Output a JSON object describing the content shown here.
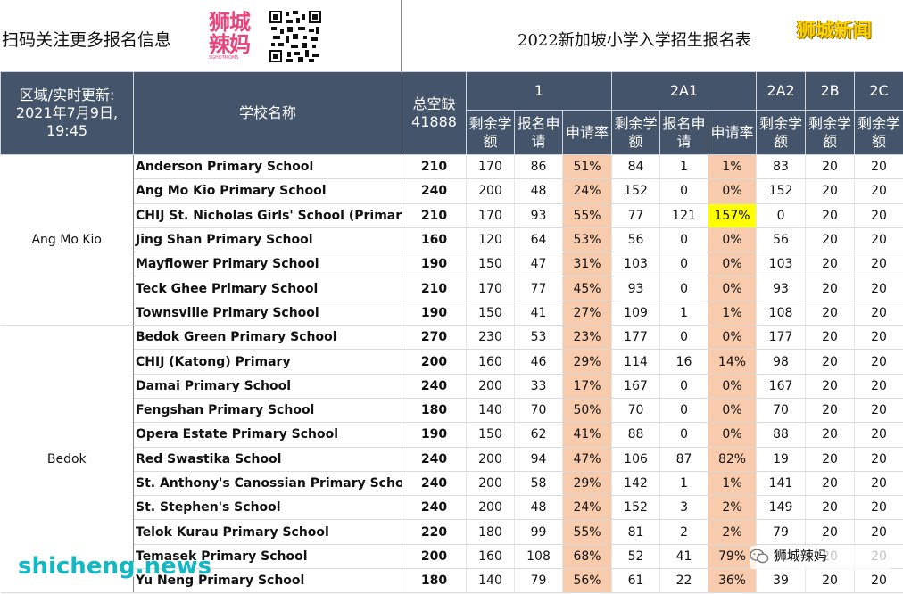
{
  "header": {
    "promo_text": "扫码关注更多报名信息",
    "logo_line1": "狮城",
    "logo_line2": "辣妈",
    "logo_line3": "SGHOTMOMS",
    "title": "2022新加坡小学入学招生报名表",
    "brand": "狮城新闻"
  },
  "table": {
    "h_region": "区域/实时更新: 2021年7月9日, 19:45",
    "h_school": "学校名称",
    "h_total": "总空缺",
    "h_total_value": "41888",
    "phases": [
      "1",
      "2A1",
      "2A2",
      "2B",
      "2C"
    ],
    "sub_remaining": "剩余学额",
    "sub_applied": "报名申请",
    "sub_rate": "申请率",
    "regions": [
      {
        "name": "Ang Mo Kio",
        "rows": [
          [
            "Anderson Primary School",
            "210",
            "170",
            "86",
            "51%",
            "84",
            "1",
            "1%",
            "83",
            "20",
            "20"
          ],
          [
            "Ang Mo Kio Primary School",
            "240",
            "200",
            "48",
            "24%",
            "152",
            "0",
            "0%",
            "152",
            "20",
            "20"
          ],
          [
            "CHIJ St. Nicholas Girls' School (Primary Section)",
            "210",
            "170",
            "93",
            "55%",
            "77",
            "121",
            "157%",
            "0",
            "20",
            "20"
          ],
          [
            "Jing Shan Primary School",
            "160",
            "120",
            "64",
            "53%",
            "56",
            "0",
            "0%",
            "56",
            "20",
            "20"
          ],
          [
            "Mayflower Primary School",
            "190",
            "150",
            "47",
            "31%",
            "103",
            "0",
            "0%",
            "103",
            "20",
            "20"
          ],
          [
            "Teck Ghee Primary School",
            "210",
            "170",
            "77",
            "45%",
            "93",
            "0",
            "0%",
            "93",
            "20",
            "20"
          ],
          [
            "Townsville Primary School",
            "190",
            "150",
            "41",
            "27%",
            "109",
            "1",
            "1%",
            "108",
            "20",
            "20"
          ]
        ]
      },
      {
        "name": "Bedok",
        "rows": [
          [
            "Bedok Green Primary School",
            "270",
            "230",
            "53",
            "23%",
            "177",
            "0",
            "0%",
            "177",
            "20",
            "20"
          ],
          [
            "CHIJ (Katong) Primary",
            "200",
            "160",
            "46",
            "29%",
            "114",
            "16",
            "14%",
            "98",
            "20",
            "20"
          ],
          [
            "Damai Primary School",
            "240",
            "200",
            "33",
            "17%",
            "167",
            "0",
            "0%",
            "167",
            "20",
            "20"
          ],
          [
            "Fengshan Primary School",
            "180",
            "140",
            "70",
            "50%",
            "70",
            "0",
            "0%",
            "70",
            "20",
            "20"
          ],
          [
            "Opera Estate Primary School",
            "190",
            "150",
            "62",
            "41%",
            "88",
            "0",
            "0%",
            "88",
            "20",
            "20"
          ],
          [
            "Red Swastika School",
            "240",
            "200",
            "94",
            "47%",
            "106",
            "87",
            "82%",
            "19",
            "20",
            "20"
          ],
          [
            "St. Anthony's Canossian Primary School",
            "240",
            "200",
            "58",
            "29%",
            "142",
            "1",
            "1%",
            "141",
            "20",
            "20"
          ],
          [
            "St. Stephen's School",
            "240",
            "200",
            "48",
            "24%",
            "152",
            "3",
            "2%",
            "149",
            "20",
            "20"
          ],
          [
            "Telok Kurau Primary School",
            "220",
            "180",
            "99",
            "55%",
            "81",
            "2",
            "2%",
            "79",
            "20",
            "20"
          ],
          [
            "Temasek Primary School",
            "200",
            "160",
            "108",
            "68%",
            "52",
            "41",
            "79%",
            "11",
            "20",
            "20"
          ],
          [
            "Yu Neng Primary School",
            "180",
            "140",
            "79",
            "56%",
            "61",
            "22",
            "36%",
            "39",
            "20",
            "20"
          ]
        ]
      }
    ]
  },
  "overlay": {
    "watermark": "shicheng.news",
    "badge": "狮城辣妈"
  }
}
